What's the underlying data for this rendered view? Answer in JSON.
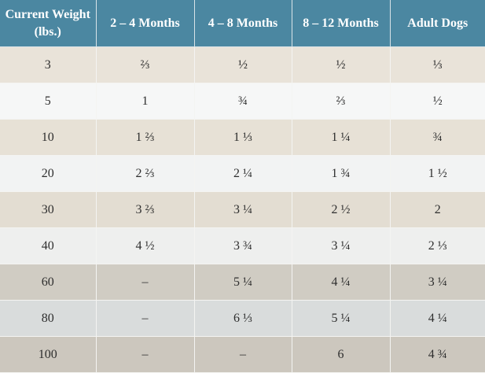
{
  "table": {
    "header": [
      "Current Weight (lbs.)",
      "2 – 4 Months",
      "4 – 8 Months",
      "8 – 12 Months",
      "Adult Dogs"
    ],
    "rows": [
      [
        "3",
        "⅔",
        "½",
        "½",
        "⅓"
      ],
      [
        "5",
        "1",
        "¾",
        "⅔",
        "½"
      ],
      [
        "10",
        "1 ⅔",
        "1 ⅓",
        "1 ¼",
        "¾"
      ],
      [
        "20",
        "2 ⅔",
        "2 ¼",
        "1 ¾",
        "1 ½"
      ],
      [
        "30",
        "3 ⅔",
        "3 ¼",
        "2 ½",
        "2"
      ],
      [
        "40",
        "4 ½",
        "3 ¾",
        "3 ¼",
        "2 ⅓"
      ],
      [
        "60",
        "–",
        "5 ¼",
        "4 ¼",
        "3 ¼"
      ],
      [
        "80",
        "–",
        "6 ⅓",
        "5 ¼",
        "4 ¼"
      ],
      [
        "100",
        "–",
        "–",
        "6",
        "4 ¾"
      ]
    ]
  }
}
